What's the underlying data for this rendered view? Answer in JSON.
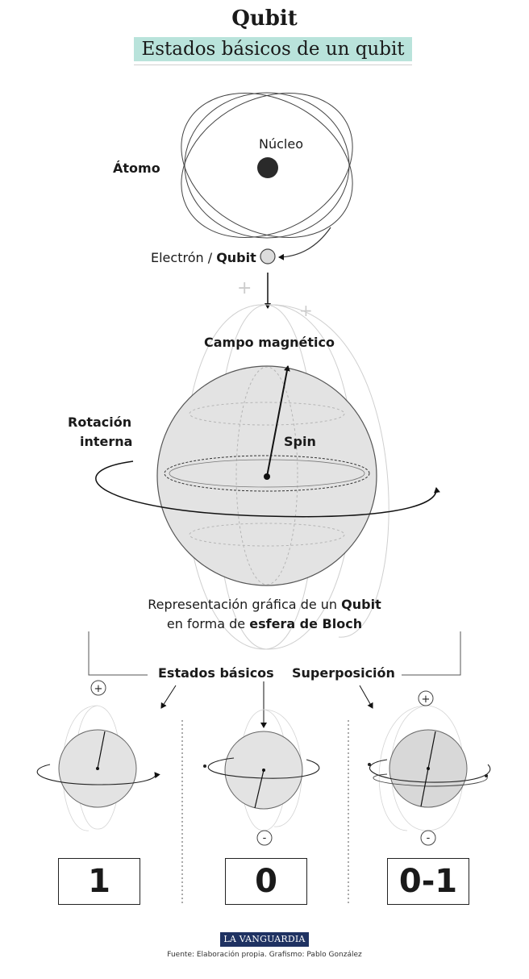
{
  "header": {
    "title": "Qubit",
    "subtitle": "Estados básicos de un qubit"
  },
  "atom": {
    "label": "Átomo",
    "nucleus_label": "Núcleo",
    "electron_label": "Electrón / ",
    "electron_label_bold": "Qubit"
  },
  "bloch": {
    "field_label": "Campo magnético",
    "rotation_label_line1": "Rotación",
    "rotation_label_line2": "interna",
    "spin_label": "Spin",
    "caption_line1": "Representación gráfica de un ",
    "caption_line1_bold": "Qubit",
    "caption_line2": "en forma de ",
    "caption_line2_bold": "esfera de Bloch"
  },
  "states": {
    "basic_label": "Estados básicos",
    "superposition_label": "Superposición",
    "values": [
      "1",
      "0",
      "0-1"
    ],
    "plus_sign": "+",
    "minus_sign": "-"
  },
  "footer": {
    "logo": "LA VANGUARDIA",
    "source": "Fuente: Elaboración propia. Grafismo: Pablo González"
  },
  "colors": {
    "accent": "#b9e3db",
    "sphere_fill": "#e3e3e3",
    "logo_bg": "#1f3262"
  }
}
